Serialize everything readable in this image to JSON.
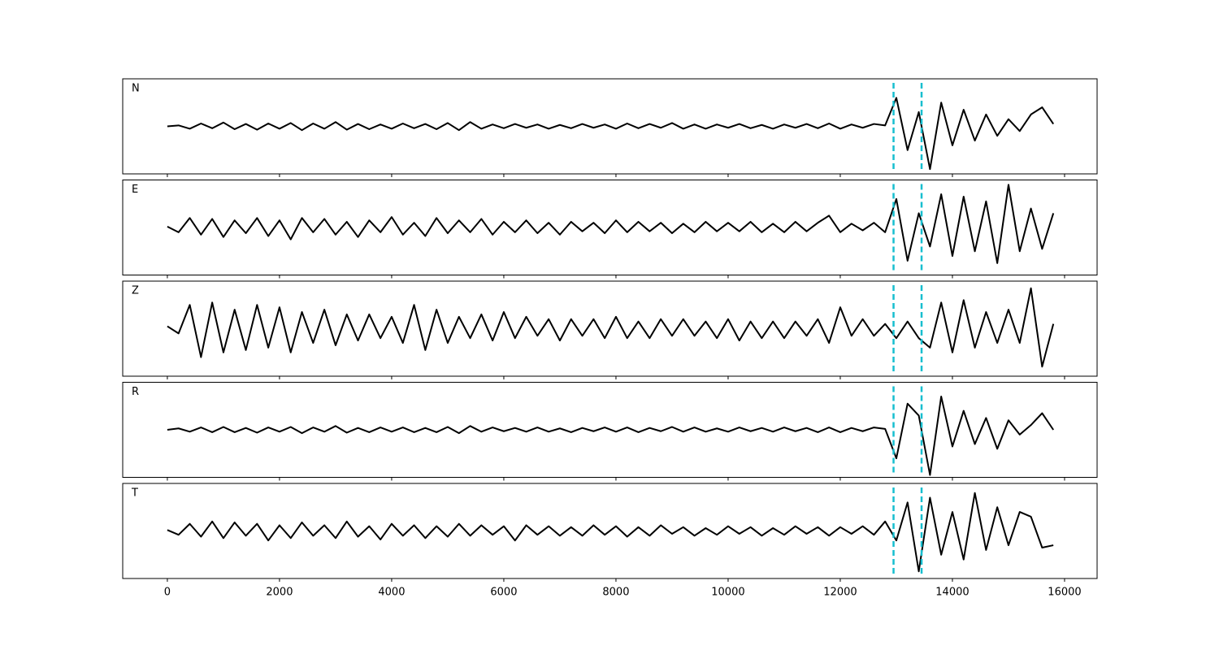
{
  "chart_data": {
    "type": "line",
    "x": [
      0,
      200,
      400,
      600,
      800,
      1000,
      1200,
      1400,
      1600,
      1800,
      2000,
      2200,
      2400,
      2600,
      2800,
      3000,
      3200,
      3400,
      3600,
      3800,
      4000,
      4200,
      4400,
      4600,
      4800,
      5000,
      5200,
      5400,
      5600,
      5800,
      6000,
      6200,
      6400,
      6600,
      6800,
      7000,
      7200,
      7400,
      7600,
      7800,
      8000,
      8200,
      8400,
      8600,
      8800,
      9000,
      9200,
      9400,
      9600,
      9800,
      10000,
      10200,
      10400,
      10600,
      10800,
      11000,
      11200,
      11400,
      11600,
      11800,
      12000,
      12200,
      12400,
      12600,
      12800,
      13000,
      13200,
      13400,
      13600,
      13800,
      14000,
      14200,
      14400,
      14600,
      14800,
      15000,
      15200,
      15400,
      15600,
      15800
    ],
    "series": [
      {
        "name": "N",
        "color": "#000000",
        "values": [
          0,
          0.02,
          -0.05,
          0.06,
          -0.04,
          0.08,
          -0.06,
          0.05,
          -0.07,
          0.06,
          -0.05,
          0.07,
          -0.08,
          0.06,
          -0.05,
          0.09,
          -0.07,
          0.05,
          -0.06,
          0.04,
          -0.05,
          0.06,
          -0.04,
          0.05,
          -0.06,
          0.07,
          -0.08,
          0.09,
          -0.05,
          0.04,
          -0.04,
          0.05,
          -0.03,
          0.04,
          -0.05,
          0.03,
          -0.04,
          0.05,
          -0.03,
          0.04,
          -0.05,
          0.06,
          -0.04,
          0.05,
          -0.03,
          0.07,
          -0.05,
          0.04,
          -0.05,
          0.04,
          -0.03,
          0.05,
          -0.04,
          0.03,
          -0.05,
          0.04,
          -0.03,
          0.05,
          -0.04,
          0.06,
          -0.05,
          0.04,
          -0.03,
          0.05,
          0.02,
          0.6,
          -0.5,
          0.3,
          -0.9,
          0.5,
          -0.4,
          0.35,
          -0.3,
          0.25,
          -0.2,
          0.15,
          -0.1,
          0.25,
          0.4,
          0.05
        ]
      },
      {
        "name": "E",
        "color": "#000000",
        "values": [
          0.02,
          -0.1,
          0.2,
          -0.15,
          0.18,
          -0.2,
          0.15,
          -0.12,
          0.2,
          -0.18,
          0.15,
          -0.25,
          0.2,
          -0.1,
          0.18,
          -0.15,
          0.12,
          -0.2,
          0.15,
          -0.1,
          0.22,
          -0.15,
          0.1,
          -0.18,
          0.2,
          -0.12,
          0.15,
          -0.1,
          0.18,
          -0.15,
          0.12,
          -0.1,
          0.15,
          -0.12,
          0.1,
          -0.15,
          0.12,
          -0.08,
          0.1,
          -0.12,
          0.15,
          -0.1,
          0.12,
          -0.08,
          0.1,
          -0.12,
          0.08,
          -0.1,
          0.12,
          -0.08,
          0.1,
          -0.08,
          0.12,
          -0.1,
          0.08,
          -0.1,
          0.12,
          -0.08,
          0.1,
          0.25,
          -0.1,
          0.08,
          -0.06,
          0.1,
          -0.1,
          0.6,
          -0.7,
          0.3,
          -0.4,
          0.7,
          -0.6,
          0.65,
          -0.5,
          0.55,
          -0.75,
          0.9,
          -0.5,
          0.4,
          -0.45,
          0.3
        ]
      },
      {
        "name": "Z",
        "color": "#000000",
        "values": [
          0.05,
          -0.1,
          0.5,
          -0.6,
          0.55,
          -0.5,
          0.4,
          -0.45,
          0.5,
          -0.4,
          0.45,
          -0.5,
          0.35,
          -0.3,
          0.4,
          -0.35,
          0.3,
          -0.25,
          0.3,
          -0.2,
          0.25,
          -0.3,
          0.5,
          -0.45,
          0.4,
          -0.3,
          0.25,
          -0.2,
          0.3,
          -0.25,
          0.35,
          -0.2,
          0.25,
          -0.15,
          0.2,
          -0.25,
          0.2,
          -0.15,
          0.2,
          -0.2,
          0.25,
          -0.2,
          0.15,
          -0.2,
          0.2,
          -0.15,
          0.2,
          -0.15,
          0.15,
          -0.2,
          0.2,
          -0.25,
          0.15,
          -0.2,
          0.15,
          -0.2,
          0.15,
          -0.15,
          0.2,
          -0.3,
          0.45,
          -0.15,
          0.2,
          -0.15,
          0.1,
          -0.2,
          0.15,
          -0.2,
          -0.4,
          0.55,
          -0.5,
          0.6,
          -0.4,
          0.35,
          -0.3,
          0.4,
          -0.3,
          0.85,
          -0.8,
          0.1
        ]
      },
      {
        "name": "R",
        "color": "#000000",
        "values": [
          0,
          0.03,
          -0.04,
          0.05,
          -0.05,
          0.06,
          -0.05,
          0.04,
          -0.06,
          0.05,
          -0.04,
          0.06,
          -0.07,
          0.05,
          -0.04,
          0.08,
          -0.06,
          0.04,
          -0.05,
          0.05,
          -0.04,
          0.05,
          -0.05,
          0.04,
          -0.05,
          0.06,
          -0.07,
          0.08,
          -0.04,
          0.05,
          -0.03,
          0.04,
          -0.04,
          0.05,
          -0.04,
          0.03,
          -0.05,
          0.04,
          -0.03,
          0.05,
          -0.04,
          0.05,
          -0.05,
          0.04,
          -0.03,
          0.06,
          -0.04,
          0.05,
          -0.04,
          0.03,
          -0.04,
          0.05,
          -0.03,
          0.04,
          -0.04,
          0.05,
          -0.03,
          0.04,
          -0.05,
          0.05,
          -0.05,
          0.04,
          -0.03,
          0.05,
          0.02,
          -0.6,
          0.55,
          0.3,
          -0.95,
          0.7,
          -0.35,
          0.4,
          -0.3,
          0.25,
          -0.4,
          0.2,
          -0.1,
          0.1,
          0.35,
          0
        ]
      },
      {
        "name": "T",
        "color": "#000000",
        "values": [
          0.02,
          -0.08,
          0.15,
          -0.12,
          0.2,
          -0.15,
          0.18,
          -0.1,
          0.15,
          -0.2,
          0.12,
          -0.15,
          0.18,
          -0.1,
          0.12,
          -0.15,
          0.2,
          -0.12,
          0.1,
          -0.18,
          0.15,
          -0.1,
          0.12,
          -0.15,
          0.1,
          -0.12,
          0.15,
          -0.1,
          0.12,
          -0.08,
          0.1,
          -0.2,
          0.12,
          -0.08,
          0.1,
          -0.1,
          0.08,
          -0.1,
          0.12,
          -0.08,
          0.1,
          -0.12,
          0.08,
          -0.1,
          0.12,
          -0.06,
          0.08,
          -0.1,
          0.06,
          -0.08,
          0.1,
          -0.06,
          0.08,
          -0.1,
          0.06,
          -0.08,
          0.1,
          -0.06,
          0.08,
          -0.1,
          0.08,
          -0.06,
          0.1,
          -0.08,
          0.2,
          -0.2,
          0.6,
          -0.85,
          0.7,
          -0.5,
          0.4,
          -0.6,
          0.8,
          -0.4,
          0.5,
          -0.3,
          0.4,
          0.3,
          -0.35,
          -0.3
        ]
      }
    ],
    "vlines": [
      12950,
      13450
    ],
    "vline_color": "#17becf",
    "xlim": [
      -796,
      16580
    ],
    "xticks": [
      0,
      2000,
      4000,
      6000,
      8000,
      10000,
      12000,
      14000,
      16000
    ],
    "ylim": [
      -1,
      1
    ]
  }
}
